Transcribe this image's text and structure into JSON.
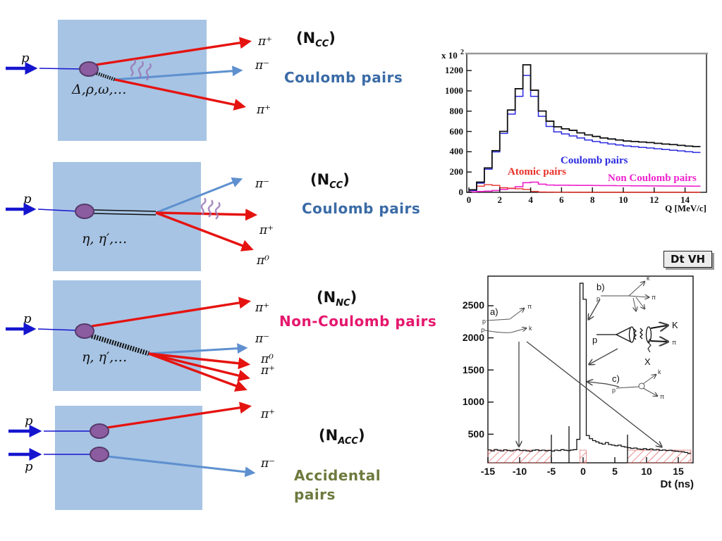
{
  "colors": {
    "box_blue": "#a7c4e4",
    "proton_blue": "#1515cf",
    "pion_red": "#e51310",
    "pion_lightblue": "#5e90cf",
    "vertex_purple": "#8b5c9f",
    "coulomb_text": "#3a6ba6",
    "noncoulomb_text": "#e5176d",
    "accidental_text": "#6d7a3e",
    "hist_total": "#111111",
    "hist_coulomb": "#2a2ae0",
    "hist_atomic": "#e83028",
    "hist_noncoulomb": "#ee22cc",
    "hatch_red": "#e05555"
  },
  "left_panel": {
    "rows": [
      {
        "incoming": [
          "p"
        ],
        "resonance": "Δ,ρ,ω,…",
        "n_open": "(N",
        "n_sub": "CC",
        "n_close": ")",
        "pair_label": "Coulomb pairs",
        "pions": [
          "π⁺",
          "π⁻",
          "π⁺"
        ]
      },
      {
        "incoming": [
          "p"
        ],
        "resonance": "η, η′,…",
        "n_open": "(N",
        "n_sub": "CC",
        "n_close": ")",
        "pair_label": "Coulomb pairs",
        "pions": [
          "π⁻",
          "π⁺",
          "π⁰"
        ]
      },
      {
        "incoming": [
          "p"
        ],
        "resonance": "η, η′,…",
        "n_open": "(N",
        "n_sub": "NC",
        "n_close": ")",
        "pair_label": "Non-Coulomb pairs",
        "pions": [
          "π⁺",
          "π⁻",
          "π⁰",
          "π⁺"
        ]
      },
      {
        "incoming": [
          "p",
          "p"
        ],
        "n_open": "(N",
        "n_sub": "ACC",
        "n_close": ")",
        "pair_label_line1": "Accidental",
        "pair_label_line2": "pairs",
        "pions": [
          "π⁺",
          "π⁻"
        ]
      }
    ]
  },
  "chart_data": [
    {
      "type": "line",
      "title": "",
      "xlabel": "Q [MeV/c]",
      "ylabel_prefix": "x 10",
      "ylabel_exp": "2",
      "xlim": [
        0,
        15.5
      ],
      "ylim": [
        0,
        1360
      ],
      "bin_start": 0,
      "bin_width": 0.5,
      "xticks": [
        0,
        2,
        4,
        6,
        8,
        10,
        12,
        14
      ],
      "yticks": [
        0,
        200,
        400,
        600,
        800,
        1000,
        1200
      ],
      "legend_position": "in-plot",
      "grid": false,
      "series": [
        {
          "name": "Total",
          "color": "#111111",
          "values": [
            25,
            100,
            240,
            410,
            600,
            810,
            1020,
            1255,
            1005,
            800,
            700,
            645,
            625,
            610,
            585,
            565,
            550,
            535,
            525,
            515,
            505,
            500,
            495,
            490,
            482,
            475,
            470,
            462,
            455,
            450
          ]
        },
        {
          "name": "Coulomb pairs",
          "color": "#2a2ae0",
          "values": [
            18,
            90,
            228,
            398,
            580,
            770,
            945,
            1150,
            945,
            748,
            648,
            595,
            575,
            555,
            535,
            515,
            500,
            488,
            476,
            466,
            456,
            449,
            442,
            436,
            428,
            421,
            414,
            407,
            400,
            393
          ]
        },
        {
          "name": "Atomic pairs",
          "color": "#e83028",
          "values": [
            20,
            60,
            75,
            68,
            45,
            40,
            35,
            28,
            8,
            3,
            2,
            1,
            1,
            0,
            0,
            0,
            0,
            0,
            0,
            0,
            0,
            0,
            0,
            0,
            0,
            0,
            0,
            0,
            0,
            0
          ]
        },
        {
          "name": "Non Coulomb pairs",
          "color": "#ee22cc",
          "values": [
            5,
            8,
            12,
            18,
            28,
            38,
            55,
            95,
            100,
            80,
            72,
            70,
            70,
            69,
            68,
            68,
            67,
            66,
            66,
            65,
            65,
            64,
            64,
            63,
            63,
            62,
            62,
            61,
            61,
            60
          ]
        }
      ],
      "inplot_labels": [
        "Coulomb pairs",
        "Atomic pairs",
        "Non Coulomb pairs"
      ]
    },
    {
      "type": "line",
      "title": "Dt VH",
      "xlabel": "Dt  (ns)",
      "xlim": [
        -15.2,
        17.3
      ],
      "ylim": [
        0,
        2950
      ],
      "bin_start": -15,
      "bin_width": 0.5,
      "xticks": [
        -15,
        -10,
        -5,
        0,
        5,
        10,
        15
      ],
      "yticks": [
        500,
        1000,
        1500,
        2000,
        2500
      ],
      "grid": false,
      "series": [
        {
          "name": "Dt distribution",
          "color": "#111111",
          "values": [
            255,
            240,
            262,
            250,
            240,
            258,
            247,
            240,
            252,
            262,
            245,
            250,
            240,
            236,
            250,
            258,
            245,
            252,
            242,
            248,
            238,
            252,
            246,
            260,
            250,
            244,
            254,
            260,
            420,
            2850,
            2600,
            480,
            430,
            400,
            380,
            360,
            345,
            370,
            340,
            330,
            320,
            330,
            310,
            300,
            290,
            280,
            285,
            270,
            265,
            275,
            260,
            270,
            255,
            262,
            248,
            255,
            245,
            250,
            240,
            235,
            230,
            225,
            215,
            200
          ]
        }
      ],
      "hatched_regions": [
        [
          -15,
          -5
        ],
        [
          -0.5,
          0.5
        ],
        [
          7,
          17
        ]
      ],
      "hatch_height": 250,
      "insets": {
        "a": {
          "label": "a)",
          "p1": "p",
          "p2": "P",
          "pi": "π",
          "k": "k"
        },
        "b": {
          "label": "b)",
          "p": "p",
          "k": "k",
          "pi": "π"
        },
        "c": {
          "label": "c)",
          "p": "p",
          "k": "k",
          "pi": "π"
        },
        "central": {
          "p": "p",
          "K": "K",
          "pi": "π",
          "X": "X"
        }
      }
    }
  ]
}
